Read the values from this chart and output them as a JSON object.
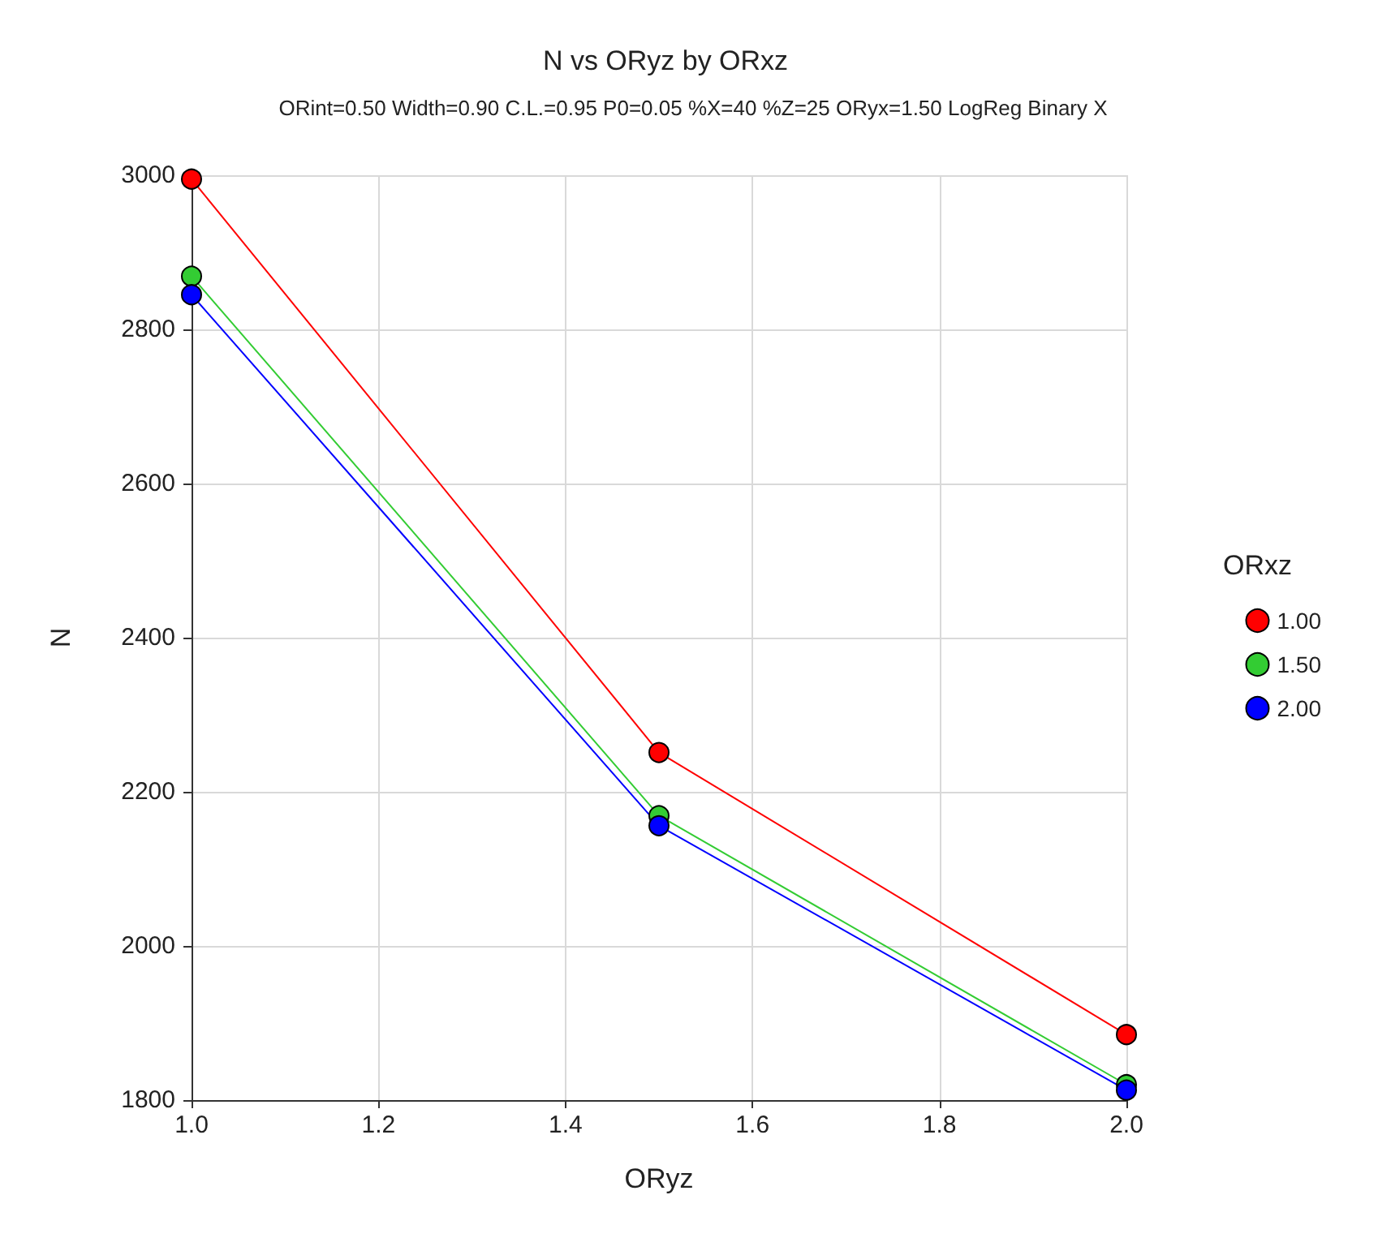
{
  "chart_data": {
    "type": "line",
    "title": "N vs ORyz by ORxz",
    "subtitle": "ORint=0.50 Width=0.90 C.L.=0.95 P0=0.05 %X=40 %Z=25 ORyx=1.50 LogReg Binary X",
    "xlabel": "ORyz",
    "ylabel": "N",
    "legend_title": "ORxz",
    "x": [
      1.0,
      1.5,
      2.0
    ],
    "series": [
      {
        "name": "1.00",
        "color": "#ff0000",
        "values": [
          2995,
          2251,
          1885
        ]
      },
      {
        "name": "1.50",
        "color": "#33cc33",
        "values": [
          2869,
          2169,
          1820
        ]
      },
      {
        "name": "2.00",
        "color": "#0000ff",
        "values": [
          2845,
          2156,
          1813
        ]
      }
    ],
    "xlim": [
      1.0,
      2.0
    ],
    "xticks": [
      {
        "value": 1.0,
        "label": "1.0"
      },
      {
        "value": 1.2,
        "label": "1.2"
      },
      {
        "value": 1.4,
        "label": "1.4"
      },
      {
        "value": 1.6,
        "label": "1.6"
      },
      {
        "value": 1.8,
        "label": "1.8"
      },
      {
        "value": 2.0,
        "label": "2.0"
      }
    ],
    "ylim": [
      1800,
      3000
    ],
    "yticks": [
      1800,
      2000,
      2200,
      2400,
      2600,
      2800,
      3000
    ],
    "grid": true,
    "legend": "right",
    "marker": "circle",
    "line_style": "solid"
  }
}
